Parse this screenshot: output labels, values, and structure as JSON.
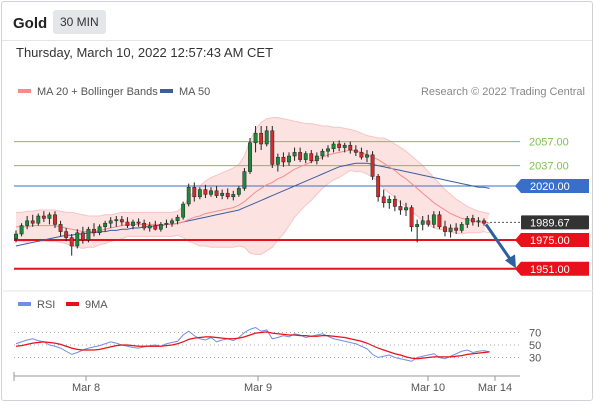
{
  "header": {
    "title": "Gold",
    "timeframe": "30 MIN",
    "timestamp": "Thursday, March 10, 2022 12:57:43 AM CET"
  },
  "copyright": "Research © 2022 Trading Central",
  "colors": {
    "support": "#e8101a",
    "resistance": "#7dc24b",
    "pivot": "#3a6fc9",
    "last_price_bg": "#333333",
    "arrow": "#2e5f9f",
    "rsi": "#6f8fe6",
    "rsi_ma": "#e8101a",
    "ma50": "#3a5f9f",
    "bollinger": "#f58c8c",
    "up_candle": "#1a8a3a",
    "down_candle": "#d42a2a"
  },
  "chart_data": [
    {
      "type": "candlestick",
      "legend": [
        {
          "name": "MA 20 + Bollinger Bands",
          "color": "#f58c8c"
        },
        {
          "name": "MA 50",
          "color": "#3a5f9f"
        }
      ],
      "x_ticks": [
        "Mar 8",
        "Mar 9",
        "Mar 10",
        "Mar 14"
      ],
      "ylim": [
        1940,
        2090
      ],
      "levels": [
        {
          "label": "2057.00",
          "value": 2057,
          "kind": "resistance"
        },
        {
          "label": "2037.00",
          "value": 2037,
          "kind": "resistance"
        },
        {
          "label": "2020.00",
          "value": 2020,
          "kind": "pivot"
        },
        {
          "label": "1989.67",
          "value": 1989.67,
          "kind": "last"
        },
        {
          "label": "1975.00",
          "value": 1975,
          "kind": "support"
        },
        {
          "label": "1951.00",
          "value": 1951,
          "kind": "support"
        }
      ],
      "candles": [
        {
          "o": 1976,
          "h": 1983,
          "l": 1973,
          "c": 1980
        },
        {
          "o": 1980,
          "h": 1989,
          "l": 1978,
          "c": 1987
        },
        {
          "o": 1987,
          "h": 1995,
          "l": 1984,
          "c": 1991
        },
        {
          "o": 1991,
          "h": 1996,
          "l": 1986,
          "c": 1989
        },
        {
          "o": 1989,
          "h": 1997,
          "l": 1987,
          "c": 1995
        },
        {
          "o": 1995,
          "h": 1999,
          "l": 1990,
          "c": 1993
        },
        {
          "o": 1993,
          "h": 1998,
          "l": 1988,
          "c": 1996
        },
        {
          "o": 1996,
          "h": 1999,
          "l": 1985,
          "c": 1988
        },
        {
          "o": 1988,
          "h": 1991,
          "l": 1978,
          "c": 1982
        },
        {
          "o": 1982,
          "h": 1985,
          "l": 1974,
          "c": 1977
        },
        {
          "o": 1977,
          "h": 1980,
          "l": 1962,
          "c": 1970
        },
        {
          "o": 1970,
          "h": 1984,
          "l": 1968,
          "c": 1981
        },
        {
          "o": 1981,
          "h": 1986,
          "l": 1972,
          "c": 1975
        },
        {
          "o": 1975,
          "h": 1986,
          "l": 1973,
          "c": 1984
        },
        {
          "o": 1984,
          "h": 1989,
          "l": 1978,
          "c": 1981
        },
        {
          "o": 1981,
          "h": 1988,
          "l": 1979,
          "c": 1986
        },
        {
          "o": 1986,
          "h": 1991,
          "l": 1982,
          "c": 1989
        },
        {
          "o": 1989,
          "h": 1994,
          "l": 1985,
          "c": 1991
        },
        {
          "o": 1991,
          "h": 1995,
          "l": 1986,
          "c": 1992
        },
        {
          "o": 1992,
          "h": 1995,
          "l": 1987,
          "c": 1990
        },
        {
          "o": 1990,
          "h": 1994,
          "l": 1985,
          "c": 1987
        },
        {
          "o": 1987,
          "h": 1992,
          "l": 1984,
          "c": 1990
        },
        {
          "o": 1990,
          "h": 1993,
          "l": 1986,
          "c": 1989
        },
        {
          "o": 1989,
          "h": 1992,
          "l": 1983,
          "c": 1985
        },
        {
          "o": 1985,
          "h": 1990,
          "l": 1982,
          "c": 1987
        },
        {
          "o": 1987,
          "h": 1991,
          "l": 1983,
          "c": 1984
        },
        {
          "o": 1984,
          "h": 1990,
          "l": 1982,
          "c": 1988
        },
        {
          "o": 1988,
          "h": 1992,
          "l": 1985,
          "c": 1989
        },
        {
          "o": 1989,
          "h": 1993,
          "l": 1986,
          "c": 1991
        },
        {
          "o": 1991,
          "h": 1996,
          "l": 1988,
          "c": 1994
        },
        {
          "o": 1994,
          "h": 2007,
          "l": 1992,
          "c": 2005
        },
        {
          "o": 2005,
          "h": 2022,
          "l": 2003,
          "c": 2019
        },
        {
          "o": 2019,
          "h": 2023,
          "l": 2007,
          "c": 2011
        },
        {
          "o": 2011,
          "h": 2019,
          "l": 2009,
          "c": 2017
        },
        {
          "o": 2017,
          "h": 2021,
          "l": 2010,
          "c": 2013
        },
        {
          "o": 2013,
          "h": 2019,
          "l": 2011,
          "c": 2016
        },
        {
          "o": 2016,
          "h": 2020,
          "l": 2010,
          "c": 2012
        },
        {
          "o": 2012,
          "h": 2017,
          "l": 2009,
          "c": 2014
        },
        {
          "o": 2014,
          "h": 2018,
          "l": 2009,
          "c": 2011
        },
        {
          "o": 2011,
          "h": 2016,
          "l": 2008,
          "c": 2013
        },
        {
          "o": 2013,
          "h": 2020,
          "l": 2011,
          "c": 2018
        },
        {
          "o": 2018,
          "h": 2035,
          "l": 2016,
          "c": 2032
        },
        {
          "o": 2032,
          "h": 2060,
          "l": 2030,
          "c": 2056
        },
        {
          "o": 2056,
          "h": 2070,
          "l": 2048,
          "c": 2064
        },
        {
          "o": 2064,
          "h": 2070,
          "l": 2050,
          "c": 2055
        },
        {
          "o": 2055,
          "h": 2070,
          "l": 2053,
          "c": 2066
        },
        {
          "o": 2066,
          "h": 2070,
          "l": 2035,
          "c": 2038
        },
        {
          "o": 2038,
          "h": 2047,
          "l": 2032,
          "c": 2044
        },
        {
          "o": 2044,
          "h": 2048,
          "l": 2036,
          "c": 2040
        },
        {
          "o": 2040,
          "h": 2048,
          "l": 2037,
          "c": 2045
        },
        {
          "o": 2045,
          "h": 2052,
          "l": 2041,
          "c": 2048
        },
        {
          "o": 2048,
          "h": 2052,
          "l": 2040,
          "c": 2042
        },
        {
          "o": 2042,
          "h": 2049,
          "l": 2039,
          "c": 2047
        },
        {
          "o": 2047,
          "h": 2050,
          "l": 2039,
          "c": 2041
        },
        {
          "o": 2041,
          "h": 2048,
          "l": 2038,
          "c": 2045
        },
        {
          "o": 2045,
          "h": 2051,
          "l": 2042,
          "c": 2049
        },
        {
          "o": 2049,
          "h": 2054,
          "l": 2044,
          "c": 2051
        },
        {
          "o": 2051,
          "h": 2057,
          "l": 2048,
          "c": 2055
        },
        {
          "o": 2055,
          "h": 2058,
          "l": 2049,
          "c": 2052
        },
        {
          "o": 2052,
          "h": 2056,
          "l": 2048,
          "c": 2054
        },
        {
          "o": 2054,
          "h": 2057,
          "l": 2047,
          "c": 2050
        },
        {
          "o": 2050,
          "h": 2054,
          "l": 2045,
          "c": 2048
        },
        {
          "o": 2048,
          "h": 2052,
          "l": 2042,
          "c": 2044
        },
        {
          "o": 2044,
          "h": 2050,
          "l": 2040,
          "c": 2046
        },
        {
          "o": 2046,
          "h": 2049,
          "l": 2025,
          "c": 2028
        },
        {
          "o": 2028,
          "h": 2030,
          "l": 2007,
          "c": 2011
        },
        {
          "o": 2011,
          "h": 2017,
          "l": 2002,
          "c": 2006
        },
        {
          "o": 2006,
          "h": 2012,
          "l": 2001,
          "c": 2009
        },
        {
          "o": 2009,
          "h": 2012,
          "l": 1999,
          "c": 2003
        },
        {
          "o": 2003,
          "h": 2008,
          "l": 1996,
          "c": 2000
        },
        {
          "o": 2000,
          "h": 2006,
          "l": 1995,
          "c": 2002
        },
        {
          "o": 2002,
          "h": 2004,
          "l": 1982,
          "c": 1986
        },
        {
          "o": 1986,
          "h": 1992,
          "l": 1973,
          "c": 1988
        },
        {
          "o": 1988,
          "h": 1995,
          "l": 1983,
          "c": 1991
        },
        {
          "o": 1991,
          "h": 1996,
          "l": 1986,
          "c": 1988
        },
        {
          "o": 1988,
          "h": 1999,
          "l": 1985,
          "c": 1996
        },
        {
          "o": 1996,
          "h": 1999,
          "l": 1984,
          "c": 1986
        },
        {
          "o": 1986,
          "h": 1991,
          "l": 1978,
          "c": 1982
        },
        {
          "o": 1982,
          "h": 1988,
          "l": 1977,
          "c": 1985
        },
        {
          "o": 1985,
          "h": 1989,
          "l": 1980,
          "c": 1983
        },
        {
          "o": 1983,
          "h": 1990,
          "l": 1981,
          "c": 1988
        },
        {
          "o": 1988,
          "h": 1995,
          "l": 1985,
          "c": 1993
        },
        {
          "o": 1993,
          "h": 1996,
          "l": 1987,
          "c": 1990
        },
        {
          "o": 1990,
          "h": 1994,
          "l": 1986,
          "c": 1991
        },
        {
          "o": 1991,
          "h": 1993,
          "l": 1987,
          "c": 1989
        }
      ],
      "ma20": [
        1986,
        1986,
        1986,
        1987,
        1987,
        1987,
        1987,
        1987,
        1986,
        1985,
        1984,
        1983,
        1982,
        1982,
        1982,
        1983,
        1984,
        1985,
        1986,
        1987,
        1988,
        1988,
        1988,
        1988,
        1988,
        1988,
        1988,
        1988,
        1988,
        1989,
        1990,
        1992,
        1994,
        1995,
        1997,
        1998,
        1999,
        2000,
        2001,
        2002,
        2004,
        2007,
        2011,
        2015,
        2018,
        2021,
        2023,
        2026,
        2028,
        2031,
        2034,
        2036,
        2038,
        2040,
        2042,
        2044,
        2046,
        2047,
        2048,
        2049,
        2050,
        2049,
        2048,
        2046,
        2044,
        2042,
        2039,
        2036,
        2033,
        2029,
        2026,
        2022,
        2018,
        2014,
        2010,
        2006,
        2003,
        2000,
        1997,
        1995,
        1993,
        1992,
        1991,
        1990,
        1990,
        1989
      ],
      "bb_upper": [
        1998,
        1998,
        1999,
        1999,
        2000,
        2000,
        2000,
        2000,
        1999,
        1998,
        1998,
        1997,
        1996,
        1995,
        1995,
        1995,
        1996,
        1996,
        1997,
        1998,
        1998,
        1998,
        1998,
        1998,
        1998,
        1998,
        1998,
        1998,
        1998,
        1999,
        2003,
        2010,
        2016,
        2020,
        2024,
        2027,
        2029,
        2031,
        2033,
        2035,
        2038,
        2045,
        2058,
        2067,
        2073,
        2076,
        2077,
        2077,
        2076,
        2075,
        2074,
        2073,
        2072,
        2072,
        2071,
        2070,
        2070,
        2069,
        2069,
        2068,
        2067,
        2066,
        2064,
        2062,
        2061,
        2060,
        2060,
        2058,
        2055,
        2052,
        2049,
        2045,
        2041,
        2037,
        2032,
        2027,
        2022,
        2017,
        2013,
        2009,
        2006,
        2003,
        2001,
        1999,
        1998,
        1997
      ],
      "bb_lower": [
        1974,
        1974,
        1973,
        1975,
        1974,
        1974,
        1974,
        1974,
        1973,
        1972,
        1970,
        1969,
        1968,
        1969,
        1969,
        1971,
        1972,
        1974,
        1975,
        1976,
        1978,
        1978,
        1978,
        1978,
        1978,
        1978,
        1978,
        1978,
        1978,
        1979,
        1977,
        1974,
        1972,
        1970,
        1970,
        1969,
        1969,
        1969,
        1969,
        1969,
        1970,
        1969,
        1964,
        1963,
        1963,
        1966,
        1969,
        1975,
        1980,
        1987,
        1994,
        1999,
        2004,
        2008,
        2013,
        2018,
        2022,
        2025,
        2027,
        2030,
        2033,
        2032,
        2032,
        2030,
        2027,
        2024,
        2018,
        2014,
        2011,
        2006,
        2003,
        1999,
        1995,
        1991,
        1988,
        1985,
        1984,
        1983,
        1981,
        1981,
        1980,
        1981,
        1981,
        1981,
        1982,
        1981
      ],
      "ma50": [
        1970,
        1971,
        1972,
        1973,
        1974,
        1975,
        1976,
        1977,
        1978,
        1979,
        1979,
        1980,
        1980,
        1981,
        1981,
        1982,
        1982,
        1983,
        1983,
        1984,
        1984,
        1985,
        1985,
        1986,
        1986,
        1987,
        1987,
        1988,
        1988,
        1989,
        1990,
        1991,
        1992,
        1993,
        1994,
        1995,
        1996,
        1997,
        1998,
        1999,
        2000,
        2002,
        2004,
        2006,
        2008,
        2010,
        2012,
        2014,
        2016,
        2018,
        2020,
        2022,
        2024,
        2026,
        2028,
        2030,
        2032,
        2034,
        2036,
        2037,
        2038,
        2039,
        2039,
        2039,
        2038,
        2037,
        2036,
        2035,
        2034,
        2033,
        2032,
        2031,
        2030,
        2029,
        2028,
        2027,
        2026,
        2025,
        2024,
        2023,
        2022,
        2021,
        2020,
        2019,
        2019,
        2018
      ],
      "forecast_arrow": {
        "from": 1988,
        "to": 1953
      }
    },
    {
      "type": "line",
      "legend": [
        {
          "name": "RSI",
          "color": "#6f8fe6"
        },
        {
          "name": "9MA",
          "color": "#e8101a"
        }
      ],
      "ylim": [
        10,
        90
      ],
      "y_ticks": [
        70,
        50,
        30
      ],
      "rsi": [
        52,
        55,
        58,
        60,
        57,
        55,
        50,
        48,
        45,
        40,
        35,
        38,
        42,
        45,
        47,
        49,
        52,
        55,
        53,
        50,
        48,
        46,
        45,
        47,
        49,
        50,
        48,
        52,
        54,
        56,
        66,
        72,
        65,
        60,
        58,
        62,
        55,
        58,
        60,
        57,
        62,
        70,
        75,
        78,
        72,
        74,
        60,
        62,
        65,
        63,
        68,
        66,
        62,
        64,
        66,
        68,
        64,
        60,
        58,
        56,
        54,
        52,
        48,
        44,
        35,
        30,
        32,
        34,
        30,
        28,
        26,
        24,
        30,
        32,
        34,
        36,
        30,
        28,
        32,
        36,
        40,
        42,
        38,
        40,
        41,
        39
      ],
      "rsi_ma": [
        48,
        49,
        51,
        53,
        54,
        55,
        54,
        53,
        51,
        48,
        45,
        43,
        42,
        42,
        42,
        43,
        45,
        47,
        49,
        50,
        50,
        49,
        48,
        48,
        48,
        48,
        48,
        49,
        50,
        52,
        55,
        59,
        61,
        62,
        63,
        63,
        62,
        61,
        60,
        60,
        61,
        63,
        66,
        69,
        70,
        71,
        69,
        68,
        67,
        66,
        66,
        65,
        65,
        64,
        64,
        65,
        65,
        64,
        63,
        62,
        60,
        58,
        56,
        53,
        49,
        45,
        42,
        39,
        36,
        34,
        31,
        29,
        28,
        29,
        30,
        31,
        31,
        31,
        31,
        32,
        33,
        35,
        36,
        37,
        38,
        39
      ]
    }
  ]
}
